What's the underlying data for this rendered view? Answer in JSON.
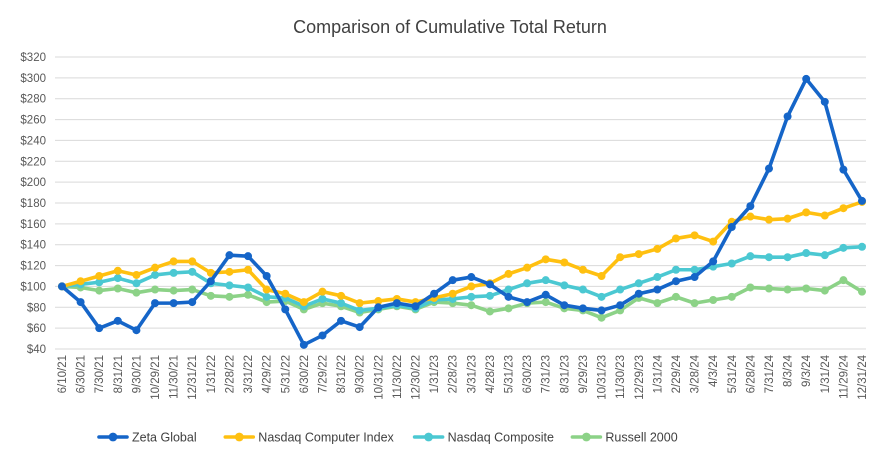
{
  "title": "Comparison of Cumulative Total Return",
  "chart_data": {
    "type": "line",
    "title": "Comparison of Cumulative Total Return",
    "x_labels": [
      "6/10/21",
      "6/30/21",
      "7/30/21",
      "8/31/21",
      "9/30/21",
      "10/29/21",
      "11/30/21",
      "12/31/21",
      "1/31/22",
      "2/28/22",
      "3/31/22",
      "4/29/22",
      "5/31/22",
      "6/30/22",
      "7/29/22",
      "8/31/22",
      "9/30/22",
      "10/31/22",
      "11/30/22",
      "12/30/22",
      "1/31/23",
      "2/28/23",
      "3/31/23",
      "4/28/23",
      "5/31/23",
      "6/30/23",
      "7/31/23",
      "8/31/23",
      "9/29/23",
      "10/31/23",
      "11/30/23",
      "12/29/23",
      "1/31/24",
      "2/29/24",
      "3/28/24",
      "4/3/24",
      "5/31/24",
      "6/28/24",
      "7/31/24",
      "8/3/24",
      "9/3/24",
      "1/31/24",
      "11/29/24",
      "12/31/24"
    ],
    "series": [
      {
        "name": "Zeta Global",
        "color": "#1565C8",
        "values": [
          100,
          85,
          60,
          67,
          58,
          84,
          84,
          85,
          105,
          130,
          129,
          110,
          78,
          44,
          53,
          67,
          61,
          80,
          84,
          81,
          93,
          106,
          109,
          102,
          90,
          85,
          92,
          82,
          79,
          77,
          82,
          93,
          97,
          105,
          109,
          124,
          157,
          177,
          213,
          263,
          299,
          277,
          212,
          182
        ]
      },
      {
        "name": "Nasdaq Computer Index",
        "color": "#FFC010",
        "values": [
          100,
          105,
          110,
          115,
          111,
          118,
          124,
          124,
          113,
          114,
          116,
          97,
          93,
          85,
          95,
          91,
          84,
          86,
          88,
          85,
          89,
          93,
          100,
          103,
          112,
          118,
          126,
          123,
          116,
          110,
          128,
          131,
          136,
          146,
          149,
          143,
          162,
          167,
          164,
          165,
          171,
          168,
          175,
          181
        ]
      },
      {
        "name": "Nasdaq Composite",
        "color": "#4BC8D2",
        "values": [
          100,
          102,
          104,
          108,
          103,
          111,
          113,
          114,
          103,
          101,
          99,
          90,
          89,
          81,
          88,
          84,
          77,
          79,
          82,
          79,
          87,
          88,
          90,
          91,
          97,
          103,
          106,
          101,
          97,
          90,
          97,
          103,
          109,
          116,
          116,
          119,
          122,
          129,
          128,
          128,
          132,
          130,
          137,
          138
        ]
      },
      {
        "name": "Russell 2000",
        "color": "#8CD287",
        "values": [
          100,
          99,
          96,
          98,
          94,
          97,
          96,
          97,
          91,
          90,
          92,
          85,
          86,
          78,
          84,
          81,
          75,
          78,
          81,
          78,
          85,
          84,
          82,
          76,
          79,
          84,
          85,
          79,
          77,
          70,
          77,
          89,
          84,
          90,
          84,
          87,
          90,
          99,
          98,
          97,
          98,
          96,
          106,
          95
        ]
      }
    ],
    "y_axis": {
      "min": 40,
      "max": 320,
      "step": 20,
      "prefix": "$",
      "tick_labels": [
        "$320",
        "$300",
        "$280",
        "$260",
        "$240",
        "$220",
        "$200",
        "$180",
        "$160",
        "$140",
        "$120",
        "$100",
        "$80",
        "$60",
        "$40"
      ]
    },
    "grid": true,
    "legend_position": "bottom",
    "colors": {
      "grid": "#D9D9D9",
      "axis_text": "#595959",
      "title_text": "#404040",
      "legend_text": "#404040",
      "background": "#FFFFFF"
    }
  }
}
